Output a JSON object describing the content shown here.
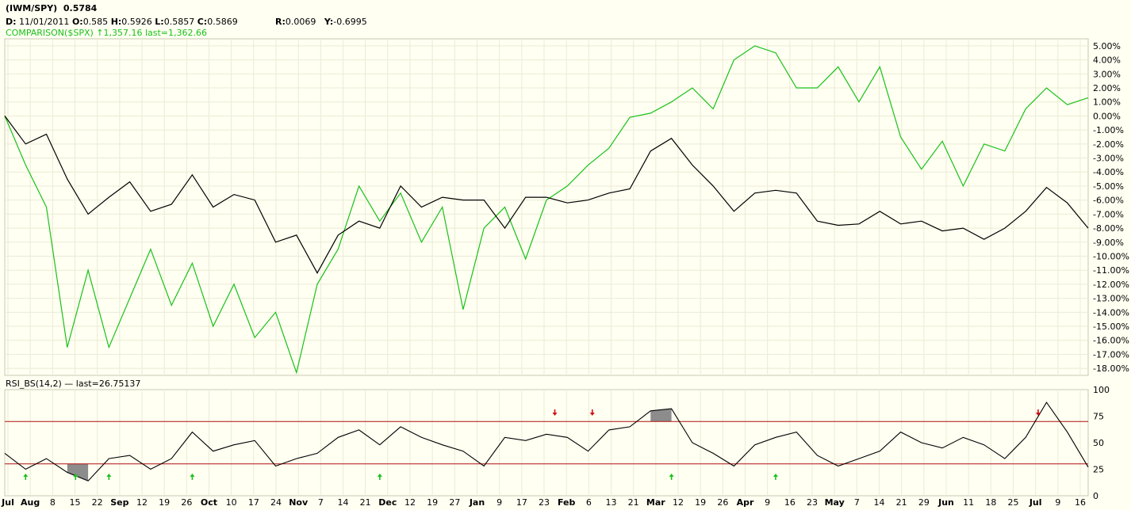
{
  "header": {
    "symbol": "(IWM/SPY)",
    "last": "0.5784",
    "date_label": "D:",
    "date": "11/01/2011",
    "o_label": "O:",
    "o": "0.585",
    "h_label": "H:",
    "h": "0.5926",
    "l_label": "L:",
    "l": "0.5857",
    "c_label": "C:",
    "c": "0.5869",
    "r_label": "R:",
    "r": "0.0069",
    "y_label": "Y:",
    "y": "-0.6995",
    "comparison": "COMPARISON($SPX) ↑1,357.16 last=1,362.66"
  },
  "rsi_header": "RSI_BS(14,2) — last=26.75137",
  "colors": {
    "background": "#fffff2",
    "grid": "#ecebd6",
    "ratio_line": "#000000",
    "comparison_line": "#19c119",
    "threshold_line": "#b01010",
    "fill": "#8c8c8c",
    "buy_arrow": "#19c119",
    "sell_arrow": "#d01010"
  },
  "chart_data": [
    {
      "type": "line",
      "title": "(IWM/SPY)",
      "ylabel": "",
      "ylim": [
        -18.5,
        5.5
      ],
      "yticks": [
        "5.00%",
        "4.00%",
        "3.00%",
        "2.00%",
        "1.00%",
        "0.00%",
        "-1.00%",
        "-2.00%",
        "-3.00%",
        "-4.00%",
        "-5.00%",
        "-6.00%",
        "-7.00%",
        "-8.00%",
        "-9.00%",
        "-10.00%",
        "-11.00%",
        "-12.00%",
        "-13.00%",
        "-14.00%",
        "-15.00%",
        "-16.00%",
        "-17.00%",
        "-18.00%"
      ],
      "xticks": [
        "Jul",
        "Aug",
        "8",
        "15",
        "22",
        "Sep",
        "12",
        "19",
        "26",
        "Oct",
        "10",
        "17",
        "24",
        "Nov",
        "7",
        "14",
        "21",
        "Dec",
        "12",
        "19",
        "27",
        "Jan",
        "9",
        "17",
        "23",
        "Feb",
        "6",
        "13",
        "21",
        "Mar",
        "12",
        "19",
        "26",
        "Apr",
        "9",
        "16",
        "23",
        "May",
        "7",
        "14",
        "21",
        "29",
        "Jun",
        "11",
        "18",
        "25",
        "Jul",
        "9",
        "16"
      ],
      "x_index_range": [
        0,
        260
      ],
      "series": [
        {
          "name": "IWM/SPY",
          "x": [
            0,
            5,
            10,
            15,
            20,
            25,
            30,
            35,
            40,
            45,
            50,
            55,
            60,
            65,
            70,
            75,
            80,
            85,
            90,
            95,
            100,
            105,
            110,
            115,
            120,
            125,
            130,
            135,
            140,
            145,
            150,
            155,
            160,
            165,
            170,
            175,
            180,
            185,
            190,
            195,
            200,
            205,
            210,
            215,
            220,
            225,
            230,
            235,
            240,
            245,
            250,
            255,
            260
          ],
          "values": [
            0,
            -2.0,
            -1.3,
            -4.5,
            -7.0,
            -5.8,
            -4.7,
            -6.8,
            -6.3,
            -4.2,
            -6.5,
            -5.6,
            -6.0,
            -9.0,
            -8.5,
            -11.2,
            -8.5,
            -7.5,
            -8.0,
            -5.0,
            -6.5,
            -5.8,
            -6.0,
            -6.0,
            -8.0,
            -5.8,
            -5.8,
            -6.2,
            -6.0,
            -5.5,
            -5.2,
            -2.5,
            -1.6,
            -3.5,
            -5.0,
            -6.8,
            -5.5,
            -5.3,
            -5.5,
            -7.5,
            -7.8,
            -7.7,
            -6.8,
            -7.7,
            -7.5,
            -8.2,
            -8.0,
            -8.8,
            -8.0,
            -6.8,
            -5.1,
            -6.2,
            -8.0
          ]
        },
        {
          "name": "COMPARISON($SPX)",
          "x": [
            0,
            5,
            10,
            15,
            20,
            25,
            30,
            35,
            40,
            45,
            50,
            55,
            60,
            65,
            70,
            75,
            80,
            85,
            90,
            95,
            100,
            105,
            110,
            115,
            120,
            125,
            130,
            135,
            140,
            145,
            150,
            155,
            160,
            165,
            170,
            175,
            180,
            185,
            190,
            195,
            200,
            205,
            210,
            215,
            220,
            225,
            230,
            235,
            240,
            245,
            250,
            255,
            260
          ],
          "values": [
            0,
            -3.5,
            -6.5,
            -16.5,
            -11.0,
            -16.5,
            -13.0,
            -9.5,
            -13.5,
            -10.5,
            -15.0,
            -12.0,
            -15.8,
            -14.0,
            -18.3,
            -12.0,
            -9.5,
            -5.0,
            -7.5,
            -5.5,
            -9.0,
            -6.5,
            -13.8,
            -8.0,
            -6.5,
            -10.2,
            -6.0,
            -5.0,
            -3.5,
            -2.3,
            -0.1,
            0.2,
            1.0,
            2.0,
            0.5,
            4.0,
            5.0,
            4.5,
            2.0,
            2.0,
            3.5,
            1.0,
            3.5,
            -1.5,
            -3.8,
            -1.8,
            -5.0,
            -2.0,
            -2.5,
            0.5,
            2.0,
            0.8,
            1.3
          ]
        }
      ]
    },
    {
      "type": "line",
      "title": "RSI_BS(14,2)",
      "ylim": [
        0,
        100
      ],
      "yticks": [
        "100",
        "75",
        "50",
        "25",
        "0"
      ],
      "thresholds": [
        70,
        30
      ],
      "x_index_range": [
        0,
        260
      ],
      "series": [
        {
          "name": "RSI_BS(14,2)",
          "x": [
            0,
            5,
            10,
            15,
            20,
            25,
            30,
            35,
            40,
            45,
            50,
            55,
            60,
            65,
            70,
            75,
            80,
            85,
            90,
            95,
            100,
            105,
            110,
            115,
            120,
            125,
            130,
            135,
            140,
            145,
            150,
            155,
            160,
            165,
            170,
            175,
            180,
            185,
            190,
            195,
            200,
            205,
            210,
            215,
            220,
            225,
            230,
            235,
            240,
            245,
            250,
            255,
            260
          ],
          "values": [
            40,
            25,
            35,
            22,
            14,
            35,
            38,
            25,
            35,
            60,
            42,
            48,
            52,
            28,
            35,
            40,
            55,
            62,
            48,
            65,
            55,
            48,
            42,
            28,
            55,
            52,
            58,
            55,
            42,
            62,
            65,
            80,
            82,
            50,
            40,
            28,
            48,
            55,
            60,
            38,
            28,
            35,
            42,
            60,
            50,
            45,
            55,
            48,
            35,
            55,
            88,
            60,
            27
          ]
        }
      ],
      "buy_arrows_x": [
        5,
        17,
        25,
        45,
        90,
        160,
        185
      ],
      "sell_arrows_x": [
        132,
        141,
        248
      ]
    }
  ]
}
